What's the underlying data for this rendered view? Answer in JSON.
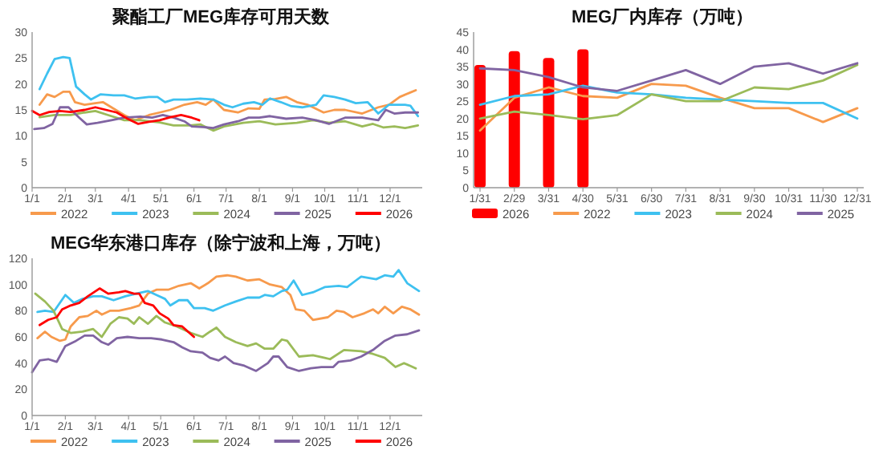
{
  "chart_data": [
    {
      "type": "line",
      "title": "聚酯工厂MEG库存可用天数",
      "xlim": [
        "--01-01",
        "--12-31"
      ],
      "ylim": [
        0,
        30
      ],
      "yticks": [
        0,
        5,
        10,
        15,
        20,
        25,
        30
      ],
      "xticks": [
        {
          "value": "--01-01",
          "label": "1/1"
        },
        {
          "value": "--02-01",
          "label": "2/1"
        },
        {
          "value": "--03-01",
          "label": "3/1"
        },
        {
          "value": "--04-01",
          "label": "4/1"
        },
        {
          "value": "--05-01",
          "label": "5/1"
        },
        {
          "value": "--06-01",
          "label": "6/1"
        },
        {
          "value": "--07-01",
          "label": "7/1"
        },
        {
          "value": "--08-01",
          "label": "8/1"
        },
        {
          "value": "--09-01",
          "label": "9/1"
        },
        {
          "value": "--10-01",
          "label": "10/1"
        },
        {
          "value": "--11-01",
          "label": "11/1"
        },
        {
          "value": "--12-01",
          "label": "12/1"
        }
      ],
      "legend": "bottom",
      "series": [
        {
          "name": "2022",
          "color": "#f79a4c",
          "x": [
            "--01-08",
            "--01-15",
            "--01-22",
            "--01-30",
            "--02-05",
            "--02-10",
            "--02-19",
            "--03-01",
            "--03-08",
            "--03-16",
            "--03-28",
            "--04-07",
            "--04-20",
            "--04-30",
            "--05-10",
            "--05-23",
            "--06-04",
            "--06-12",
            "--06-19",
            "--06-29",
            "--07-12",
            "--07-22",
            "--08-01",
            "--08-06",
            "--08-16",
            "--08-26",
            "--09-05",
            "--09-15",
            "--09-30",
            "--10-10",
            "--10-20",
            "--11-05",
            "--11-20",
            "--11-30",
            "--12-10",
            "--12-25"
          ],
          "values": [
            16,
            18,
            17.5,
            18.5,
            18.5,
            16.5,
            16,
            16.3,
            16.5,
            15.5,
            14,
            13,
            14,
            14.5,
            15,
            16,
            16.5,
            16,
            17,
            15,
            14.5,
            15.3,
            15.2,
            17,
            17.1,
            17.5,
            16.5,
            16,
            14.5,
            15,
            15,
            14.3,
            15.5,
            16,
            17.5,
            18.8
          ]
        },
        {
          "name": "2023",
          "color": "#3ec1f0",
          "x": [
            "--01-08",
            "--01-15",
            "--01-22",
            "--01-30",
            "--02-05",
            "--02-11",
            "--02-19",
            "--02-25",
            "--03-06",
            "--03-18",
            "--03-28",
            "--04-07",
            "--04-20",
            "--04-28",
            "--05-05",
            "--05-13",
            "--05-25",
            "--06-07",
            "--06-19",
            "--06-29",
            "--07-07",
            "--07-17",
            "--07-27",
            "--08-04",
            "--08-11",
            "--08-21",
            "--08-31",
            "--09-10",
            "--09-23",
            "--09-30",
            "--10-10",
            "--10-20",
            "--10-30",
            "--11-10",
            "--11-20",
            "--11-30",
            "--12-15",
            "--12-20",
            "--12-27"
          ],
          "values": [
            19,
            22,
            24.8,
            25.2,
            25,
            19.5,
            18,
            17,
            18,
            17.8,
            17.8,
            17.2,
            17.5,
            17.5,
            16.5,
            17,
            17,
            17.2,
            17,
            16,
            15.5,
            16.2,
            16.5,
            16,
            17.2,
            16.5,
            15.7,
            15.5,
            16,
            17.8,
            17.5,
            17,
            16.3,
            16.5,
            14.3,
            16,
            16,
            15.8,
            13.8
          ]
        },
        {
          "name": "2024",
          "color": "#9bbb59",
          "x": [
            "--01-08",
            "--01-22",
            "--02-06",
            "--02-19",
            "--03-01",
            "--03-13",
            "--03-28",
            "--04-12",
            "--04-30",
            "--05-13",
            "--05-28",
            "--06-07",
            "--06-19",
            "--06-29",
            "--07-17",
            "--08-01",
            "--08-16",
            "--09-05",
            "--09-20",
            "--10-05",
            "--10-20",
            "--11-05",
            "--11-15",
            "--11-25",
            "--12-05",
            "--12-15",
            "--12-27"
          ],
          "values": [
            13.6,
            14,
            14,
            14.5,
            14.8,
            14,
            13,
            13,
            12.6,
            12,
            12,
            12.2,
            11,
            11.8,
            12.5,
            12.8,
            12.2,
            12.5,
            13,
            12.5,
            12.8,
            11.8,
            12.3,
            11.6,
            11.8,
            11.5,
            12
          ]
        },
        {
          "name": "2025",
          "color": "#8064a2",
          "x": [
            "--01-03",
            "--01-12",
            "--01-20",
            "--01-27",
            "--02-04",
            "--02-14",
            "--02-21",
            "--03-03",
            "--03-16",
            "--03-28",
            "--04-12",
            "--04-23",
            "--05-03",
            "--05-13",
            "--05-23",
            "--05-30",
            "--06-09",
            "--06-19",
            "--06-29",
            "--07-12",
            "--07-22",
            "--08-01",
            "--08-11",
            "--08-26",
            "--09-10",
            "--09-23",
            "--10-05",
            "--10-20",
            "--11-05",
            "--11-20",
            "--11-27",
            "--12-05",
            "--12-15",
            "--12-27"
          ],
          "values": [
            11.3,
            11.5,
            12.3,
            15.5,
            15.5,
            13.5,
            12.2,
            12.5,
            13,
            13.5,
            13.7,
            13.5,
            14,
            13.5,
            12.8,
            11.8,
            11.7,
            11.5,
            12.2,
            12.8,
            13.5,
            13.5,
            13.8,
            13.3,
            13.5,
            13,
            12.3,
            13.5,
            13.5,
            13,
            15,
            14.3,
            14.5,
            14.5
          ]
        },
        {
          "name": "2026",
          "color": "#ff0000",
          "x": [
            "--01-01",
            "--01-08",
            "--01-17",
            "--01-27",
            "--02-06",
            "--02-19",
            "--03-01",
            "--03-11",
            "--03-21",
            "--03-31",
            "--04-10",
            "--04-20",
            "--04-30",
            "--05-10",
            "--05-20",
            "--05-30",
            "--06-06"
          ],
          "values": [
            14.8,
            14,
            14.6,
            14.8,
            14.6,
            15,
            15.5,
            15,
            14.5,
            13.3,
            12.3,
            12.7,
            13,
            13.6,
            14,
            13.5,
            13
          ]
        }
      ]
    },
    {
      "type": "line",
      "title": "MEG厂内库存（万吨）",
      "categories": [
        "1/31",
        "2/29",
        "3/31",
        "4/30",
        "5/31",
        "6/30",
        "7/31",
        "8/31",
        "9/30",
        "10/31",
        "11/30",
        "12/31"
      ],
      "ylim": [
        0,
        45
      ],
      "yticks": [
        0,
        5,
        10,
        15,
        20,
        25,
        30,
        35,
        40,
        45
      ],
      "legend": "bottom",
      "series": [
        {
          "name": "2026",
          "type": "bar",
          "color": "#ff0000",
          "values": [
            35.5,
            39.5,
            37.5,
            40,
            null,
            null,
            null,
            null,
            null,
            null,
            null,
            null
          ]
        },
        {
          "name": "2022",
          "color": "#f79a4c",
          "values": [
            16.5,
            26,
            29,
            26.5,
            26,
            30,
            29.5,
            26,
            23,
            23,
            19,
            23
          ]
        },
        {
          "name": "2023",
          "color": "#3ec1f0",
          "values": [
            24,
            26.5,
            27,
            29.5,
            27.5,
            27,
            26,
            25.5,
            25,
            24.5,
            24.5,
            20
          ]
        },
        {
          "name": "2024",
          "color": "#9bbb59",
          "values": [
            20,
            22,
            21,
            19.8,
            21,
            27,
            25,
            25,
            29,
            28.5,
            31,
            35.5
          ]
        },
        {
          "name": "2025",
          "color": "#8064a2",
          "values": [
            34.5,
            34,
            32,
            29,
            28,
            31,
            34,
            30,
            35,
            36,
            33,
            36
          ]
        }
      ]
    },
    {
      "type": "line",
      "title": "MEG华东港口库存（除宁波和上海，万吨）",
      "xlim": [
        "--01-01",
        "--12-31"
      ],
      "ylim": [
        0,
        120
      ],
      "yticks": [
        0,
        20,
        40,
        60,
        80,
        100,
        120
      ],
      "xticks": [
        {
          "value": "--01-01",
          "label": "1/1"
        },
        {
          "value": "--02-01",
          "label": "2/1"
        },
        {
          "value": "--03-01",
          "label": "3/1"
        },
        {
          "value": "--04-01",
          "label": "4/1"
        },
        {
          "value": "--05-01",
          "label": "5/1"
        },
        {
          "value": "--06-01",
          "label": "6/1"
        },
        {
          "value": "--07-01",
          "label": "7/1"
        },
        {
          "value": "--08-01",
          "label": "8/1"
        },
        {
          "value": "--09-01",
          "label": "9/1"
        },
        {
          "value": "--10-01",
          "label": "10/1"
        },
        {
          "value": "--11-01",
          "label": "11/1"
        },
        {
          "value": "--12-01",
          "label": "12/1"
        }
      ],
      "legend": "bottom",
      "series": [
        {
          "name": "2022",
          "color": "#f79a4c",
          "x": [
            "--01-06",
            "--01-13",
            "--01-19",
            "--01-27",
            "--02-01",
            "--02-06",
            "--02-14",
            "--02-22",
            "--03-02",
            "--03-07",
            "--03-15",
            "--03-23",
            "--04-03",
            "--04-11",
            "--04-19",
            "--04-27",
            "--05-08",
            "--05-18",
            "--05-29",
            "--06-06",
            "--06-14",
            "--06-22",
            "--07-02",
            "--07-10",
            "--07-21",
            "--08-01",
            "--08-11",
            "--08-22",
            "--08-30",
            "--09-04",
            "--09-12",
            "--09-20",
            "--10-04",
            "--10-12",
            "--10-19",
            "--10-27",
            "--11-07",
            "--11-15",
            "--11-20",
            "--11-26",
            "--12-04",
            "--12-12",
            "--12-20",
            "--12-28"
          ],
          "values": [
            59,
            64,
            60,
            57,
            58,
            68,
            75,
            76,
            80,
            77,
            80,
            80,
            82,
            84,
            93,
            96,
            96,
            99,
            101,
            97,
            101,
            106,
            107,
            106,
            103,
            104,
            100,
            98,
            92,
            81,
            80,
            73,
            75,
            80,
            79,
            75,
            78,
            81,
            78,
            83,
            78,
            83,
            81,
            77
          ]
        },
        {
          "name": "2023",
          "color": "#3ec1f0",
          "x": [
            "--01-06",
            "--01-13",
            "--01-21",
            "--02-01",
            "--02-09",
            "--02-17",
            "--02-27",
            "--03-07",
            "--03-18",
            "--03-29",
            "--04-08",
            "--04-19",
            "--04-27",
            "--05-05",
            "--05-10",
            "--05-18",
            "--05-26",
            "--06-01",
            "--06-11",
            "--06-19",
            "--06-30",
            "--07-10",
            "--07-21",
            "--08-01",
            "--08-06",
            "--08-14",
            "--08-22",
            "--08-27",
            "--09-02",
            "--09-10",
            "--09-20",
            "--10-01",
            "--10-14",
            "--10-22",
            "--10-30",
            "--11-04",
            "--11-18",
            "--11-26",
            "--12-04",
            "--12-09",
            "--12-17",
            "--12-28"
          ],
          "values": [
            79,
            80,
            79,
            92,
            86,
            89,
            91,
            91,
            88,
            91,
            93,
            95,
            92,
            89,
            84,
            88,
            88,
            82,
            82,
            80,
            84,
            87,
            90,
            90,
            92,
            91,
            95,
            96,
            103,
            92,
            94,
            98,
            99,
            98,
            103,
            106,
            104,
            107,
            106,
            111,
            101,
            95
          ]
        },
        {
          "name": "2024",
          "color": "#9bbb59",
          "x": [
            "--01-04",
            "--01-13",
            "--01-21",
            "--01-29",
            "--02-06",
            "--02-17",
            "--02-27",
            "--03-07",
            "--03-15",
            "--03-23",
            "--03-31",
            "--04-06",
            "--04-11",
            "--04-19",
            "--04-27",
            "--05-05",
            "--05-16",
            "--05-29",
            "--06-09",
            "--06-16",
            "--06-22",
            "--06-30",
            "--07-10",
            "--07-21",
            "--07-29",
            "--08-06",
            "--08-14",
            "--08-22",
            "--08-27",
            "--09-07",
            "--09-20",
            "--10-01",
            "--10-06",
            "--10-19",
            "--11-04",
            "--11-15",
            "--11-26",
            "--12-06",
            "--12-14",
            "--12-25"
          ],
          "values": [
            93,
            87,
            80,
            66,
            63,
            64,
            66,
            60,
            70,
            75,
            74,
            70,
            75,
            70,
            76,
            71,
            68,
            63,
            60,
            64,
            67,
            60,
            56,
            53,
            55,
            51,
            51,
            58,
            57,
            45,
            46,
            44,
            43,
            50,
            49,
            47,
            44,
            37,
            40,
            36
          ]
        },
        {
          "name": "2025",
          "color": "#8064a2",
          "x": [
            "--01-01",
            "--01-08",
            "--01-16",
            "--01-24",
            "--02-01",
            "--02-11",
            "--02-19",
            "--02-27",
            "--03-07",
            "--03-13",
            "--03-21",
            "--03-31",
            "--04-11",
            "--04-22",
            "--05-02",
            "--05-13",
            "--05-21",
            "--05-29",
            "--06-09",
            "--06-16",
            "--06-24",
            "--06-30",
            "--07-08",
            "--07-18",
            "--07-29",
            "--08-09",
            "--08-14",
            "--08-19",
            "--08-27",
            "--09-07",
            "--09-18",
            "--09-28",
            "--10-09",
            "--10-14",
            "--10-25",
            "--11-04",
            "--11-15",
            "--11-26",
            "--12-06",
            "--12-17",
            "--12-28"
          ],
          "values": [
            33,
            42,
            43,
            41,
            53,
            57,
            61,
            61,
            56,
            54,
            59,
            60,
            59,
            59,
            58,
            56,
            52,
            49,
            48,
            44,
            42,
            45,
            40,
            38,
            34,
            40,
            45,
            45,
            37,
            34,
            36,
            37,
            37,
            41,
            42,
            45,
            50,
            57,
            61,
            62,
            65
          ]
        },
        {
          "name": "2026",
          "color": "#ff0000",
          "x": [
            "--01-08",
            "--01-16",
            "--01-24",
            "--01-29",
            "--02-06",
            "--02-14",
            "--02-22",
            "--03-05",
            "--03-13",
            "--03-23",
            "--03-29",
            "--04-06",
            "--04-11",
            "--04-16",
            "--04-24",
            "--04-30",
            "--05-08",
            "--05-13",
            "--05-21",
            "--06-01"
          ],
          "values": [
            69,
            73,
            75,
            81,
            84,
            86,
            91,
            97,
            93,
            94,
            95,
            93,
            93,
            86,
            84,
            78,
            74,
            69,
            68,
            60
          ]
        }
      ]
    }
  ]
}
